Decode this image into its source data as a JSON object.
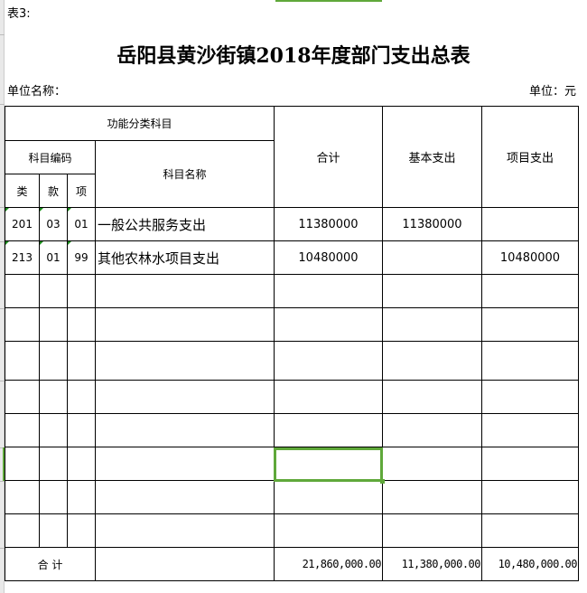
{
  "sheet_label": "表3:",
  "title": "岳阳县黄沙街镇2018年度部门支出总表",
  "unit_name_label": "单位名称：",
  "unit_label": "单位：元",
  "headers": {
    "function_category": "功能分类科目",
    "subject_code": "科目编码",
    "lei": "类",
    "kuan": "款",
    "xiang": "项",
    "subject_name": "科目名称",
    "total": "合计",
    "basic": "基本支出",
    "project": "项目支出"
  },
  "rows": [
    {
      "lei": "201",
      "kuan": "03",
      "xiang": "01",
      "name": "一般公共服务支出",
      "total": "11380000",
      "basic": "11380000",
      "project": ""
    },
    {
      "lei": "213",
      "kuan": "01",
      "xiang": "99",
      "name": "其他农林水项目支出",
      "total": "10480000",
      "basic": "",
      "project": "10480000"
    }
  ],
  "totals": {
    "label": "合 计",
    "total": "21,860,000.00",
    "basic": "11,380,000.00",
    "project": "10,480,000.00"
  },
  "colors": {
    "selection": "#5fa83a",
    "comment_marker": "#1a8c1a"
  }
}
